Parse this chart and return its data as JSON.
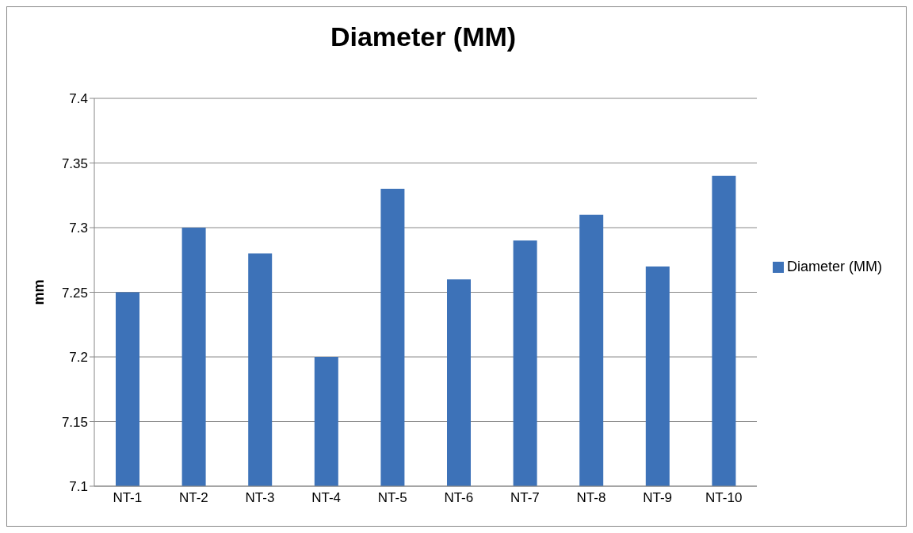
{
  "chart_data": {
    "type": "bar",
    "title": "Diameter (MM)",
    "ylabel": "mm",
    "categories": [
      "NT-1",
      "NT-2",
      "NT-3",
      "NT-4",
      "NT-5",
      "NT-6",
      "NT-7",
      "NT-8",
      "NT-9",
      "NT-10"
    ],
    "series": [
      {
        "name": "Diameter (MM)",
        "color": "#3d72b8",
        "values": [
          7.25,
          7.3,
          7.28,
          7.2,
          7.33,
          7.26,
          7.29,
          7.31,
          7.27,
          7.34
        ]
      }
    ],
    "ylim": [
      7.1,
      7.4
    ],
    "yticks": [
      7.1,
      7.15,
      7.2,
      7.25,
      7.3,
      7.35,
      7.4
    ],
    "grid": "y",
    "legend": "right"
  }
}
